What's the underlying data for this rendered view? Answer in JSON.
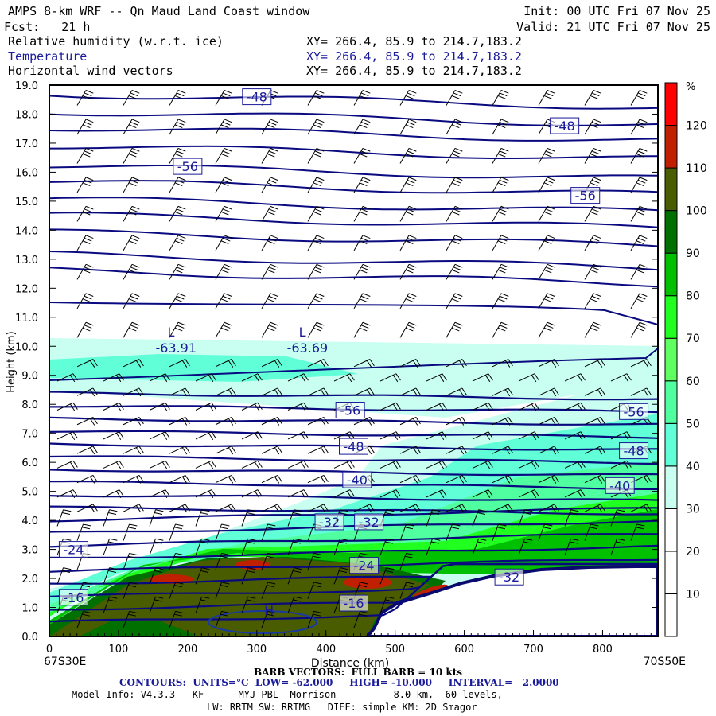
{
  "header": {
    "title": "AMPS 8-km WRF -- Qn Maud Land Coast window",
    "init": "Init: 00 UTC Fri 07 Nov 25",
    "fcst": "Fcst:   21 h",
    "valid": "Valid: 21 UTC Fri 07 Nov 25",
    "fields": [
      {
        "name": "Relative humidity (w.r.t. ice)",
        "xy": "XY= 266.4, 85.9 to 214.7,183.2"
      },
      {
        "name": "Temperature",
        "xy": "XY= 266.4, 85.9 to 214.7,183.2"
      },
      {
        "name": "Horizontal wind vectors",
        "xy": "XY= 266.4, 85.9 to 214.7,183.2"
      }
    ]
  },
  "footer": {
    "left_endpoint": "67S30E",
    "right_endpoint": "70S50E",
    "barb": "BARB VECTORS:  FULL BARB = 10 kts",
    "contours": "CONTOURS:  UNITS=°C  LOW= -62.000     HIGH= -10.000     INTERVAL=   2.0000",
    "model_info": "Model Info: V4.3.3   KF      MYJ PBL  Morrison          8.0 km,  60 levels,",
    "physics": "LW: RRTM SW: RRTMG   DIFF: simple KM: 2D Smagor"
  },
  "chart_data": {
    "type": "heatmap",
    "title": "Relative humidity (w.r.t. ice), Temperature, Horizontal wind vectors",
    "xlabel": "Distance (km)",
    "ylabel": "Height (km)",
    "xlim": [
      0,
      880
    ],
    "ylim": [
      0,
      19
    ],
    "xticks": [
      "0",
      "100",
      "200",
      "300",
      "400",
      "500",
      "600",
      "700",
      "800"
    ],
    "yticks": [
      "0.0",
      "1.0",
      "2.0",
      "3.0",
      "4.0",
      "5.0",
      "6.0",
      "7.0",
      "8.0",
      "9.0",
      "10.0",
      "11.0",
      "12.0",
      "13.0",
      "14.0",
      "15.0",
      "16.0",
      "17.0",
      "18.0",
      "19.0"
    ],
    "colorbar": {
      "unit": "%",
      "labels": [
        "10",
        "20",
        "30",
        "40",
        "50",
        "60",
        "70",
        "80",
        "90",
        "100",
        "110",
        "120"
      ],
      "colors": [
        "#ffffff",
        "#ffffff",
        "#ffffff",
        "#c8fff0",
        "#60ffd8",
        "#50ffa0",
        "#60ff60",
        "#20ff20",
        "#00c000",
        "#007000",
        "#4a5c00",
        "#c02000",
        "#ff0000"
      ]
    },
    "contour_labels": [
      {
        "text": "-48",
        "x": 300,
        "y": 18.6
      },
      {
        "text": "-48",
        "x": 745,
        "y": 17.6
      },
      {
        "text": "-56",
        "x": 200,
        "y": 16.2
      },
      {
        "text": "-56",
        "x": 775,
        "y": 15.2
      },
      {
        "text": "-56",
        "x": 435,
        "y": 7.8
      },
      {
        "text": "-56",
        "x": 845,
        "y": 7.75
      },
      {
        "text": "-48",
        "x": 440,
        "y": 6.55
      },
      {
        "text": "-48",
        "x": 845,
        "y": 6.4
      },
      {
        "text": "-40",
        "x": 445,
        "y": 5.4
      },
      {
        "text": "-40",
        "x": 825,
        "y": 5.2
      },
      {
        "text": "-32",
        "x": 405,
        "y": 3.95
      },
      {
        "text": "-32",
        "x": 462,
        "y": 3.95
      },
      {
        "text": "-24",
        "x": 35,
        "y": 3.0
      },
      {
        "text": "-24",
        "x": 455,
        "y": 2.45
      },
      {
        "text": "-32",
        "x": 665,
        "y": 2.05
      },
      {
        "text": "-16",
        "x": 35,
        "y": 1.35
      },
      {
        "text": "-16",
        "x": 440,
        "y": 1.15
      }
    ],
    "extrema": [
      {
        "type": "L",
        "value": "-63.91",
        "x": 165,
        "y": 10.2
      },
      {
        "type": "L",
        "value": "-63.69",
        "x": 355,
        "y": 10.2
      },
      {
        "type": "H",
        "value": "",
        "x": 305,
        "y": 0.6
      }
    ]
  }
}
